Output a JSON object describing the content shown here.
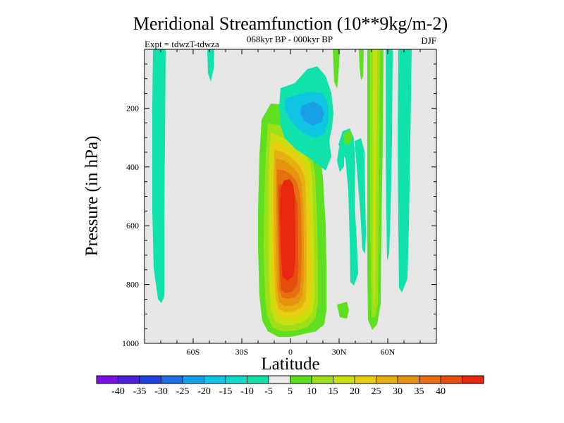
{
  "chart_data": {
    "type": "contour",
    "title": "Meridional Streamfunction (10**9kg/m-2)",
    "subtitle": "068kyr BP - 000kyr BP",
    "experiment": "Expt = tdwzT-tdwza",
    "season": "DJF",
    "xlabel": "Latitude",
    "ylabel": "Pressure (in hPa)",
    "xlim": [
      -90,
      90
    ],
    "ylim": [
      1000,
      0
    ],
    "x_ticks": [
      {
        "value": -60,
        "label": "60S"
      },
      {
        "value": -30,
        "label": "30S"
      },
      {
        "value": 0,
        "label": "0"
      },
      {
        "value": 30,
        "label": "30N"
      },
      {
        "value": 60,
        "label": "60N"
      }
    ],
    "y_ticks": [
      {
        "value": 200,
        "label": "200"
      },
      {
        "value": 400,
        "label": "400"
      },
      {
        "value": 600,
        "label": "600"
      },
      {
        "value": 800,
        "label": "800"
      },
      {
        "value": 1000,
        "label": "1000"
      }
    ],
    "colorbar": {
      "colors": [
        "#7a10e0",
        "#4a20d8",
        "#2040e0",
        "#1e6ee6",
        "#16a0e6",
        "#10c4e4",
        "#10dcd0",
        "#10e2ac",
        "#ebebeb",
        "#5ee020",
        "#9ee018",
        "#cade10",
        "#e6ce10",
        "#e6b010",
        "#e69410",
        "#e67010",
        "#e64e10",
        "#e62810"
      ],
      "labels": [
        "-40",
        "-35",
        "-30",
        "-25",
        "-20",
        "-15",
        "-10",
        "-5",
        "5",
        "10",
        "15",
        "20",
        "25",
        "30",
        "35",
        "40"
      ]
    },
    "features": [
      {
        "name": "tropical-positive-cell",
        "lat_range": [
          -12,
          16
        ],
        "p_range": [
          180,
          980
        ],
        "peak_value": 40,
        "peak_lat": -2,
        "peak_p": 700
      },
      {
        "name": "upper-negative-cell",
        "lat_range": [
          -3,
          22
        ],
        "p_range": [
          90,
          270
        ],
        "peak_value": -15,
        "peak_lat": 12,
        "peak_p": 170
      },
      {
        "name": "southern-negative-strip",
        "lat_range": [
          -83,
          -75
        ],
        "p_range": [
          0,
          860
        ],
        "peak_value": -5
      },
      {
        "name": "northern-negative-strip",
        "lat_range": [
          65,
          72
        ],
        "p_range": [
          0,
          820
        ],
        "peak_value": -5
      },
      {
        "name": "northern-positive-strip",
        "lat_range": [
          48,
          56
        ],
        "p_range": [
          0,
          960
        ],
        "peak_value": 15
      }
    ]
  }
}
